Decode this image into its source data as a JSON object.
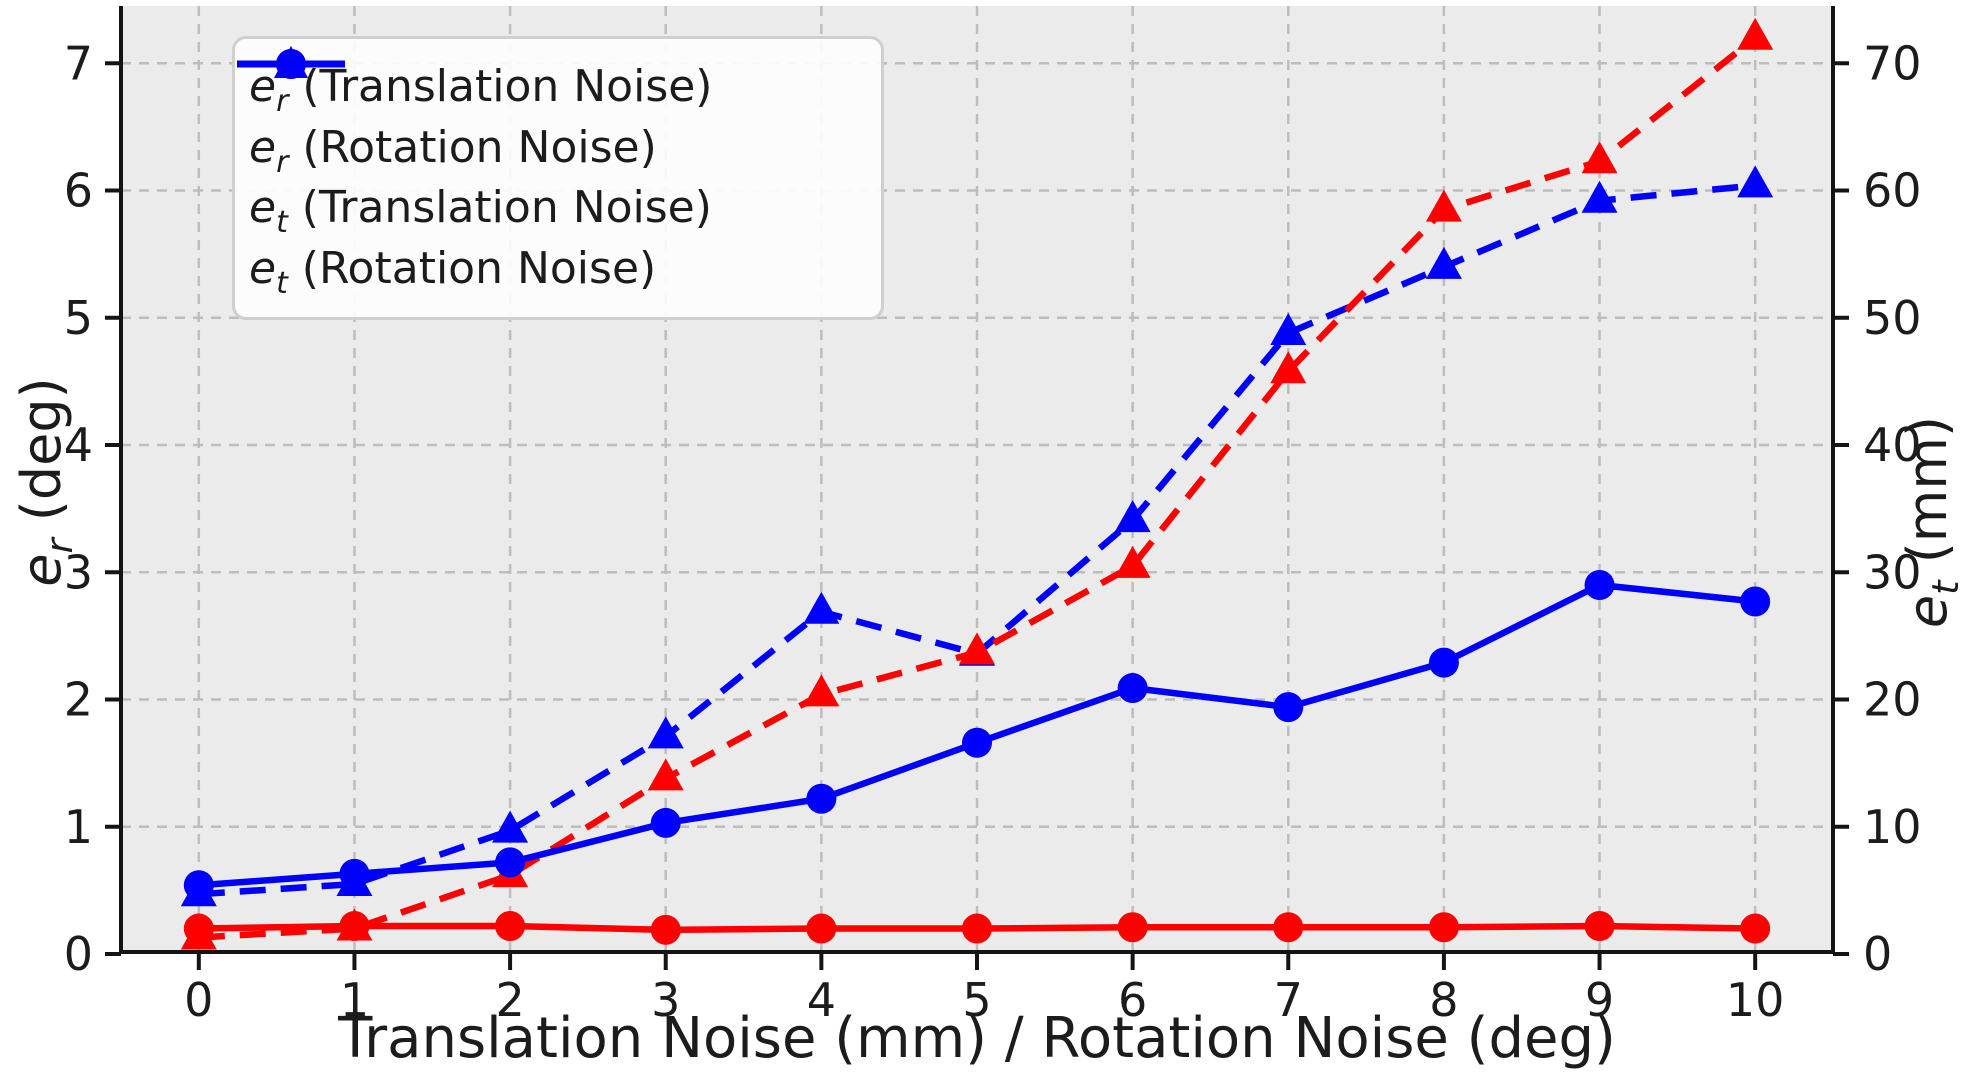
{
  "chart_data": {
    "type": "line",
    "title": "",
    "xlabel": "Translation Noise (mm) / Rotation Noise (deg)",
    "ylabel_left": {
      "base": "e",
      "sub": "r",
      "rest": " (deg)"
    },
    "ylabel_right": {
      "base": "e",
      "sub": "t",
      "rest": " (mm)"
    },
    "x": [
      0,
      1,
      2,
      3,
      4,
      5,
      6,
      7,
      8,
      9,
      10
    ],
    "xticks": [
      0,
      1,
      2,
      3,
      4,
      5,
      6,
      7,
      8,
      9,
      10
    ],
    "yticks_left": [
      0,
      1,
      2,
      3,
      4,
      5,
      6,
      7
    ],
    "yticks_right": [
      0,
      10,
      20,
      30,
      40,
      50,
      60,
      70
    ],
    "xlim": [
      -0.5,
      10.5
    ],
    "ylim_left": [
      0,
      7.45
    ],
    "ylim_right": [
      0,
      74.5
    ],
    "grid": "dashed",
    "legend_position": "upper-left",
    "series": [
      {
        "name": "er-translation-noise",
        "label": {
          "base": "e",
          "sub": "r",
          "rest": " (Translation Noise)"
        },
        "axis": "left",
        "color": "#ff0000",
        "line_style": "solid",
        "marker": "circle",
        "zorder": 4,
        "values": [
          0.2,
          0.22,
          0.22,
          0.19,
          0.2,
          0.2,
          0.21,
          0.21,
          0.21,
          0.22,
          0.2
        ]
      },
      {
        "name": "er-rotation-noise",
        "label": {
          "base": "e",
          "sub": "r",
          "rest": " (Rotation Noise)"
        },
        "axis": "left",
        "color": "#ff0000",
        "line_style": "dashed",
        "marker": "triangle",
        "zorder": 2,
        "values": [
          0.13,
          0.2,
          0.62,
          1.38,
          2.04,
          2.37,
          3.05,
          4.58,
          5.85,
          6.23,
          7.2
        ]
      },
      {
        "name": "et-translation-noise",
        "label": {
          "base": "e",
          "sub": "t",
          "rest": " (Translation Noise)"
        },
        "axis": "right",
        "color": "#0000ff",
        "line_style": "solid",
        "marker": "circle",
        "zorder": 3,
        "values": [
          5.4,
          6.3,
          7.2,
          10.3,
          12.2,
          16.6,
          20.9,
          19.4,
          22.9,
          29.0,
          27.7
        ]
      },
      {
        "name": "et-rotation-noise",
        "label": {
          "base": "e",
          "sub": "t",
          "rest": " (Rotation Noise)"
        },
        "axis": "right",
        "color": "#0000ff",
        "line_style": "dashed",
        "marker": "triangle",
        "zorder": 1,
        "values": [
          4.7,
          5.5,
          9.7,
          17.1,
          26.9,
          23.6,
          34.1,
          48.8,
          54.0,
          59.2,
          60.4
        ]
      }
    ],
    "style": {
      "plot_bg": "#ebebeb",
      "grid_color": "#bdbdbd",
      "spine_color": "#141414",
      "red": "#ff0000",
      "blue": "#0000ff"
    }
  }
}
